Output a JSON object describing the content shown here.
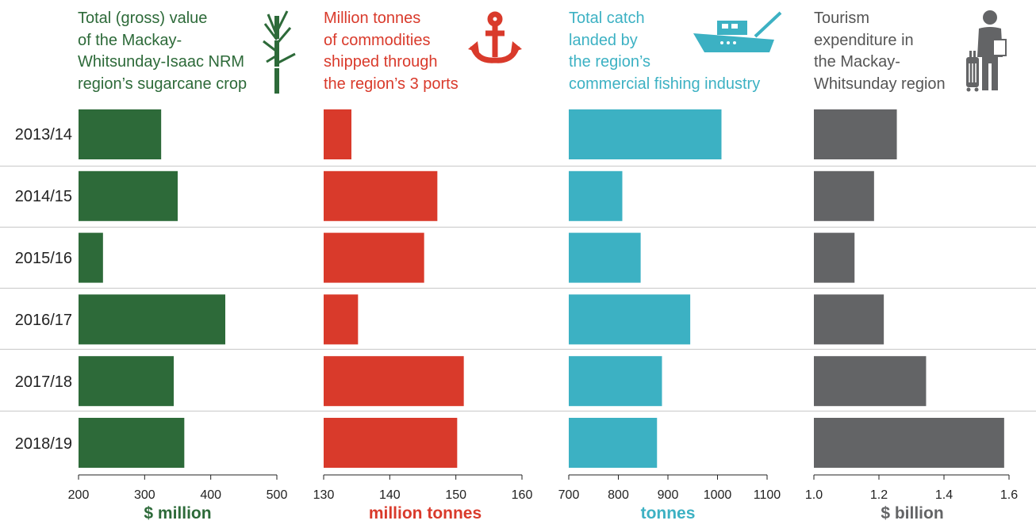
{
  "years": [
    "2013/14",
    "2014/15",
    "2015/16",
    "2016/17",
    "2017/18",
    "2018/19"
  ],
  "colors": {
    "sugar": "#2d6a39",
    "ports": "#d93a2b",
    "fishing": "#3cb1c3",
    "tourism": "#636466"
  },
  "panels": [
    {
      "id": "sugar",
      "title": "Total (gross) value\nof the Mackay-\nWhitsunday-Isaac NRM\nregion’s sugarcane crop",
      "unit": "$ million",
      "icon": "sugarcane-icon"
    },
    {
      "id": "ports",
      "title": "Million tonnes\nof commodities\nshipped through\nthe region’s 3 ports",
      "unit": "million tonnes",
      "icon": "anchor-icon"
    },
    {
      "id": "fishing",
      "title": "Total catch\nlanded by\nthe region’s\ncommercial fishing industry",
      "unit": "tonnes",
      "icon": "fishing-boat-icon"
    },
    {
      "id": "tourism",
      "title": "Tourism\nexpenditure in\nthe Mackay-\nWhitsunday region",
      "unit": "$ billion",
      "icon": "tourist-with-luggage-icon"
    }
  ],
  "chart_data": [
    {
      "type": "bar",
      "orientation": "horizontal",
      "title": "Total (gross) value of the Mackay-Whitsunday-Isaac NRM region’s sugarcane crop",
      "xlabel": "$ million",
      "categories": [
        "2013/14",
        "2014/15",
        "2015/16",
        "2016/17",
        "2017/18",
        "2018/19"
      ],
      "values": [
        325,
        350,
        237,
        422,
        344,
        360
      ],
      "xlim": [
        200,
        500
      ],
      "ticks": [
        200,
        300,
        400,
        500
      ],
      "tick_labels": [
        "200",
        "300",
        "400",
        "500"
      ],
      "grid": false
    },
    {
      "type": "bar",
      "orientation": "horizontal",
      "title": "Million tonnes of commodities shipped through the region’s 3 ports",
      "xlabel": "million tonnes",
      "categories": [
        "2013/14",
        "2014/15",
        "2015/16",
        "2016/17",
        "2017/18",
        "2018/19"
      ],
      "values": [
        134.2,
        147.2,
        145.2,
        135.2,
        151.2,
        150.2
      ],
      "xlim": [
        130,
        160
      ],
      "ticks": [
        130,
        140,
        150,
        160
      ],
      "tick_labels": [
        "130",
        "140",
        "150",
        "160"
      ],
      "grid": false
    },
    {
      "type": "bar",
      "orientation": "horizontal",
      "title": "Total catch landed by the region’s commercial fishing industry",
      "xlabel": "tonnes",
      "categories": [
        "2013/14",
        "2014/15",
        "2015/16",
        "2016/17",
        "2017/18",
        "2018/19"
      ],
      "values": [
        1008,
        808,
        845,
        945,
        888,
        878
      ],
      "xlim": [
        700,
        1100
      ],
      "ticks": [
        700,
        800,
        900,
        1000,
        1100
      ],
      "tick_labels": [
        "700",
        "800",
        "900",
        "1000",
        "1100"
      ],
      "grid": false
    },
    {
      "type": "bar",
      "orientation": "horizontal",
      "title": "Tourism expenditure in the Mackay-Whitsunday region",
      "xlabel": "$ billion",
      "categories": [
        "2013/14",
        "2014/15",
        "2015/16",
        "2016/17",
        "2017/18",
        "2018/19"
      ],
      "values": [
        1.255,
        1.185,
        1.125,
        1.215,
        1.345,
        1.585
      ],
      "xlim": [
        1.0,
        1.6
      ],
      "ticks": [
        1.0,
        1.2,
        1.4,
        1.6
      ],
      "tick_labels": [
        "1.0",
        "1.2",
        "1.4",
        "1.6"
      ],
      "grid": false
    }
  ]
}
